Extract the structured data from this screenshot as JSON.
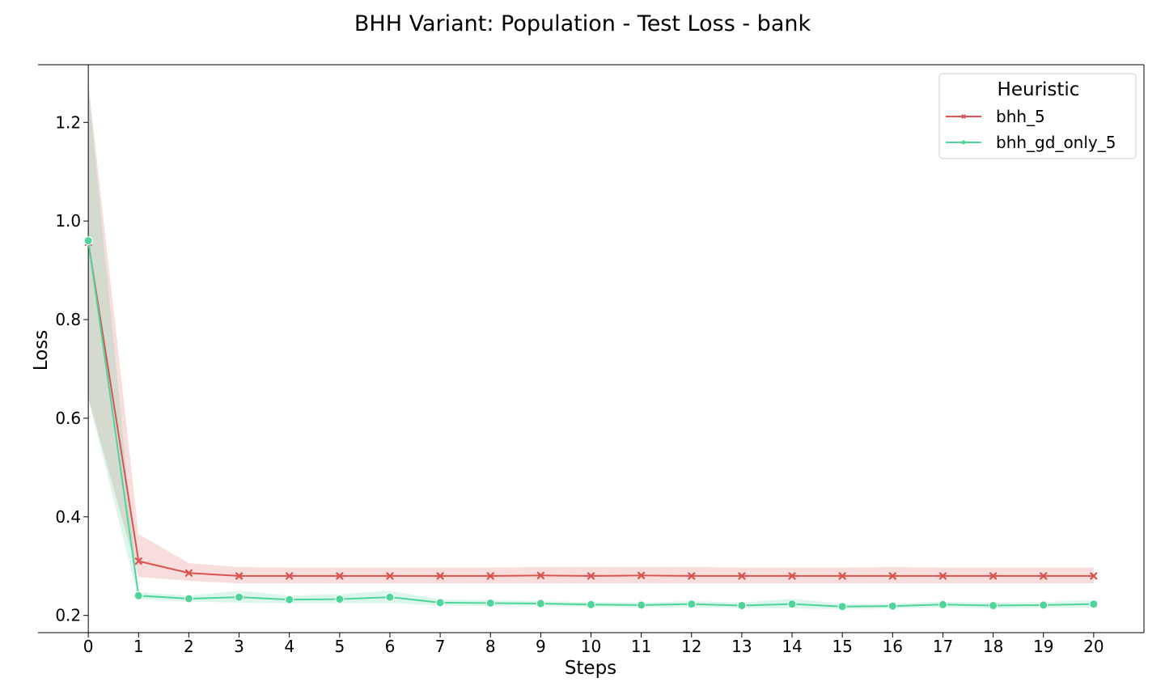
{
  "chart_data": {
    "type": "line",
    "title": "BHH Variant: Population - Test Loss - bank",
    "xlabel": "Steps",
    "ylabel": "Loss",
    "x": [
      0,
      1,
      2,
      3,
      4,
      5,
      6,
      7,
      8,
      9,
      10,
      11,
      12,
      13,
      14,
      15,
      16,
      17,
      18,
      19,
      20
    ],
    "xlim": [
      -1,
      21
    ],
    "ylim": [
      0.165,
      1.317
    ],
    "yticks": [
      0.2,
      0.4,
      0.6,
      0.8,
      1.0,
      1.2
    ],
    "ytick_labels": [
      "0.2",
      "0.4",
      "0.6",
      "0.8",
      "1.0",
      "1.2"
    ],
    "grid": false,
    "legend": {
      "title": "Heuristic",
      "placement": "top-right"
    },
    "series": [
      {
        "name": "bhh_5",
        "color": "#d9534f",
        "marker": "x",
        "values": [
          0.957,
          0.31,
          0.286,
          0.28,
          0.28,
          0.28,
          0.28,
          0.28,
          0.28,
          0.281,
          0.28,
          0.281,
          0.28,
          0.28,
          0.28,
          0.28,
          0.28,
          0.28,
          0.28,
          0.28,
          0.28
        ],
        "lower": [
          0.64,
          0.278,
          0.27,
          0.265,
          0.265,
          0.265,
          0.265,
          0.265,
          0.265,
          0.265,
          0.265,
          0.265,
          0.265,
          0.265,
          0.265,
          0.265,
          0.265,
          0.265,
          0.265,
          0.265,
          0.265
        ],
        "upper": [
          1.28,
          0.365,
          0.306,
          0.298,
          0.297,
          0.297,
          0.297,
          0.297,
          0.297,
          0.298,
          0.298,
          0.298,
          0.298,
          0.297,
          0.297,
          0.297,
          0.298,
          0.297,
          0.297,
          0.297,
          0.297
        ]
      },
      {
        "name": "bhh_gd_only_5",
        "color": "#4fd49a",
        "marker": "o",
        "values": [
          0.96,
          0.24,
          0.234,
          0.237,
          0.232,
          0.233,
          0.237,
          0.226,
          0.225,
          0.224,
          0.222,
          0.221,
          0.223,
          0.22,
          0.223,
          0.218,
          0.219,
          0.222,
          0.22,
          0.221,
          0.223
        ],
        "lower": [
          0.64,
          0.233,
          0.228,
          0.226,
          0.225,
          0.225,
          0.225,
          0.22,
          0.219,
          0.219,
          0.217,
          0.216,
          0.217,
          0.215,
          0.214,
          0.213,
          0.214,
          0.216,
          0.214,
          0.215,
          0.216
        ],
        "upper": [
          1.27,
          0.247,
          0.24,
          0.25,
          0.24,
          0.243,
          0.25,
          0.232,
          0.231,
          0.229,
          0.227,
          0.226,
          0.229,
          0.226,
          0.234,
          0.223,
          0.224,
          0.228,
          0.226,
          0.227,
          0.231
        ]
      }
    ]
  }
}
